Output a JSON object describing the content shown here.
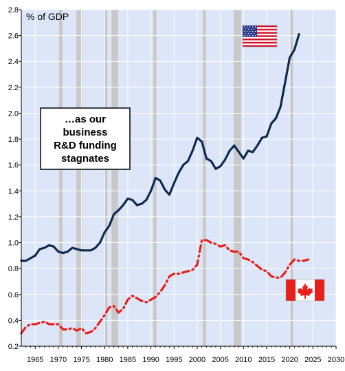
{
  "chart_data": {
    "type": "line",
    "unit_label": "% of GDP",
    "annotation": [
      "…as our",
      "business",
      "R&D funding",
      "stagnates"
    ],
    "xlim": [
      1962,
      2030
    ],
    "ylim": [
      0.2,
      2.8
    ],
    "x_ticks": [
      1965,
      1970,
      1975,
      1980,
      1985,
      1990,
      1995,
      2000,
      2005,
      2010,
      2015,
      2020,
      2025,
      2030
    ],
    "y_ticks": [
      0.2,
      0.4,
      0.6,
      0.8,
      1.0,
      1.2,
      1.4,
      1.6,
      1.8,
      2.0,
      2.2,
      2.4,
      2.6,
      2.8
    ],
    "y_tick_labels": [
      "0.2",
      "0.4",
      "0.6",
      "0.8",
      "1.0",
      "1.2",
      "1.4",
      "1.6",
      "1.8",
      "2.0",
      "2.2",
      "2.4",
      "2.6",
      "2.8"
    ],
    "recession_bands": [
      [
        1969.9,
        1970.9
      ],
      [
        1973.9,
        1975.2
      ],
      [
        1980.0,
        1980.5
      ],
      [
        1981.5,
        1982.9
      ],
      [
        1990.5,
        1991.2
      ],
      [
        2001.2,
        2001.9
      ],
      [
        2007.9,
        2009.5
      ],
      [
        2020.1,
        2020.5
      ]
    ],
    "grid": true,
    "background_color": "#dce6f8",
    "band_color": "#c8c8c8",
    "series": [
      {
        "country": "united-states",
        "color": "#0d2b4f",
        "style": "solid",
        "flag": "us-flag",
        "x": [
          1962,
          1963,
          1964,
          1965,
          1966,
          1967,
          1968,
          1969,
          1970,
          1971,
          1972,
          1973,
          1974,
          1975,
          1976,
          1977,
          1978,
          1979,
          1980,
          1981,
          1982,
          1983,
          1984,
          1985,
          1986,
          1987,
          1988,
          1989,
          1990,
          1991,
          1992,
          1993,
          1994,
          1995,
          1996,
          1997,
          1998,
          1999,
          2000,
          2001,
          2002,
          2003,
          2004,
          2005,
          2006,
          2007,
          2008,
          2009,
          2010,
          2011,
          2012,
          2013,
          2014,
          2015,
          2016,
          2017,
          2018,
          2019,
          2020,
          2021,
          2022
        ],
        "values": [
          0.86,
          0.86,
          0.88,
          0.9,
          0.95,
          0.96,
          0.98,
          0.97,
          0.93,
          0.92,
          0.93,
          0.96,
          0.95,
          0.94,
          0.94,
          0.94,
          0.96,
          1.0,
          1.08,
          1.13,
          1.22,
          1.25,
          1.29,
          1.34,
          1.33,
          1.29,
          1.3,
          1.33,
          1.4,
          1.5,
          1.48,
          1.41,
          1.37,
          1.46,
          1.54,
          1.6,
          1.63,
          1.71,
          1.81,
          1.78,
          1.65,
          1.63,
          1.57,
          1.59,
          1.64,
          1.71,
          1.75,
          1.7,
          1.65,
          1.71,
          1.7,
          1.75,
          1.81,
          1.82,
          1.92,
          1.96,
          2.05,
          2.24,
          2.43,
          2.49,
          2.61
        ]
      },
      {
        "country": "canada",
        "color": "#e8201c",
        "style": "dashdot",
        "flag": "canada-flag",
        "x": [
          1962,
          1963,
          1964,
          1965,
          1966,
          1967,
          1968,
          1969,
          1970,
          1971,
          1972,
          1973,
          1974,
          1975,
          1976,
          1977,
          1978,
          1979,
          1980,
          1981,
          1982,
          1983,
          1984,
          1985,
          1986,
          1987,
          1988,
          1989,
          1990,
          1991,
          1992,
          1993,
          1994,
          1995,
          1996,
          1997,
          1998,
          1999,
          2000,
          2001,
          2002,
          2003,
          2004,
          2005,
          2006,
          2007,
          2008,
          2009,
          2010,
          2011,
          2012,
          2013,
          2014,
          2015,
          2016,
          2017,
          2018,
          2019,
          2020,
          2021,
          2022,
          2023,
          2024
        ],
        "values": [
          0.3,
          0.35,
          0.37,
          0.37,
          0.38,
          0.39,
          0.37,
          0.37,
          0.37,
          0.33,
          0.33,
          0.34,
          0.32,
          0.34,
          0.3,
          0.31,
          0.34,
          0.39,
          0.44,
          0.5,
          0.51,
          0.46,
          0.49,
          0.56,
          0.59,
          0.57,
          0.55,
          0.54,
          0.56,
          0.58,
          0.62,
          0.67,
          0.74,
          0.76,
          0.76,
          0.77,
          0.78,
          0.79,
          0.83,
          1.02,
          1.02,
          1.0,
          0.99,
          0.97,
          0.98,
          0.94,
          0.93,
          0.93,
          0.88,
          0.87,
          0.85,
          0.82,
          0.79,
          0.78,
          0.74,
          0.73,
          0.73,
          0.77,
          0.83,
          0.87,
          0.86,
          0.86,
          0.87
        ]
      }
    ]
  }
}
